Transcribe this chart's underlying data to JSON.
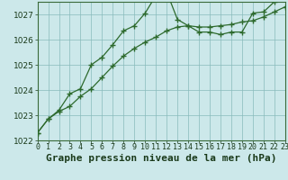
{
  "background_color": "#cce8ea",
  "grid_color": "#88bbbb",
  "line_color": "#2d6a2d",
  "x_hours": [
    0,
    1,
    2,
    3,
    4,
    5,
    6,
    7,
    8,
    9,
    10,
    11,
    12,
    13,
    14,
    15,
    16,
    17,
    18,
    19,
    20,
    21,
    22,
    23
  ],
  "line1_y": [
    1022.3,
    1022.85,
    1023.2,
    1023.85,
    1024.05,
    1025.0,
    1025.3,
    1025.8,
    1026.35,
    1026.55,
    1027.05,
    1027.75,
    1027.9,
    1026.8,
    1026.55,
    1026.3,
    1026.3,
    1026.2,
    1026.3,
    1026.3,
    1027.05,
    1027.1,
    1027.5,
    1027.7
  ],
  "line2_y": [
    1022.3,
    1022.85,
    1023.15,
    1023.35,
    1023.75,
    1024.05,
    1024.5,
    1024.95,
    1025.35,
    1025.65,
    1025.9,
    1026.1,
    1026.35,
    1026.5,
    1026.55,
    1026.5,
    1026.5,
    1026.55,
    1026.6,
    1026.7,
    1026.75,
    1026.9,
    1027.1,
    1027.3
  ],
  "ylim": [
    1022.0,
    1027.5
  ],
  "yticks": [
    1022,
    1023,
    1024,
    1025,
    1026,
    1027
  ],
  "xlim": [
    0,
    23
  ],
  "xlabel": "Graphe pression niveau de la mer (hPa)",
  "tick_fontsize": 6.5,
  "xlabel_fontsize": 8
}
